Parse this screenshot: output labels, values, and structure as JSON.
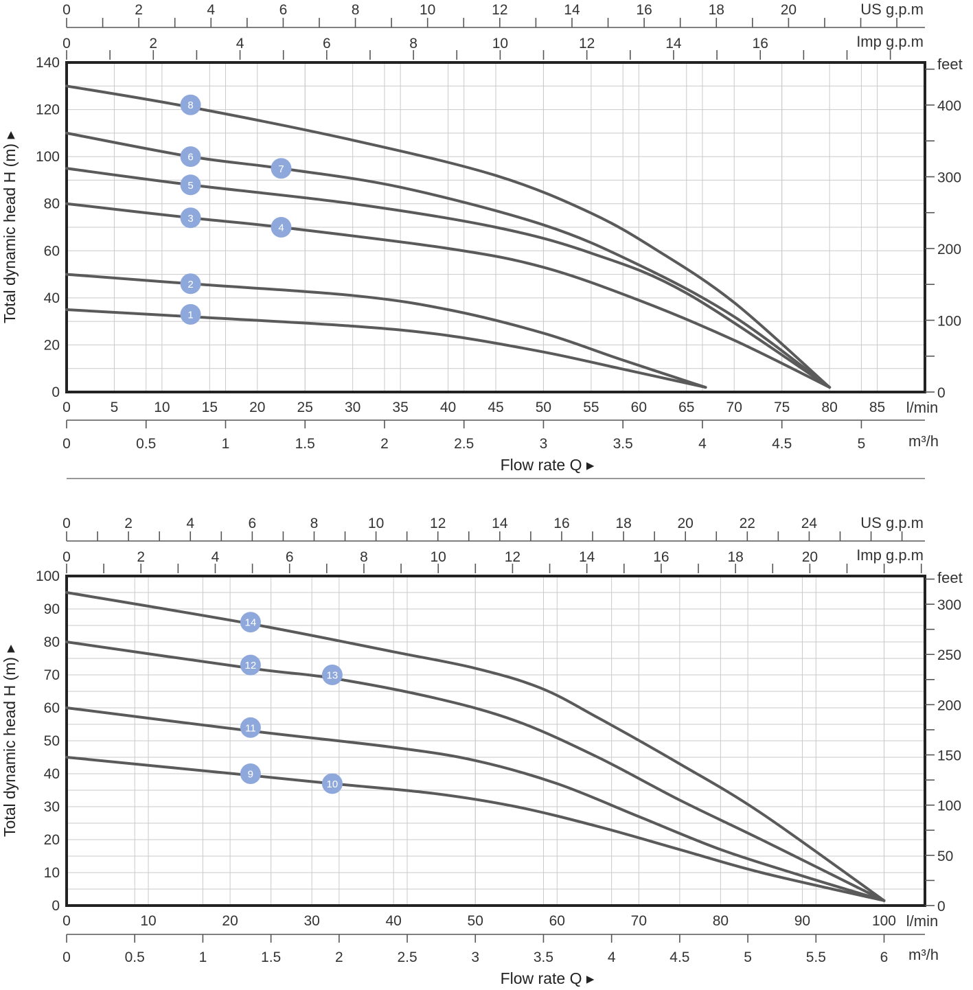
{
  "chart_data": [
    {
      "type": "line",
      "title": "",
      "colors": {
        "curve": "#5a5a5a",
        "badge": "#8fa8dc",
        "grid": "#c9c9c9",
        "frame": "#222222"
      },
      "ylabel": "Total dynamic head H (m) ▸",
      "xlabel": "Flow rate Q ▸",
      "xunit_lmin": "l/min",
      "xunit_m3h": "m³/h",
      "yunit_feet": "feet",
      "gpm_us_unit": "US g.p.m",
      "gpm_imp_unit": "Imp g.p.m",
      "xlim": [
        0,
        90
      ],
      "ylim": [
        0,
        140
      ],
      "x_ticks_lmin": [
        0,
        5,
        10,
        15,
        20,
        25,
        30,
        35,
        40,
        45,
        50,
        55,
        60,
        65,
        70,
        75,
        80,
        85
      ],
      "y_ticks_m": [
        0,
        20,
        40,
        60,
        80,
        100,
        120,
        140
      ],
      "m3h_ticks": [
        0,
        0.5,
        1,
        1.5,
        2,
        2.5,
        3,
        3.5,
        4,
        4.5,
        5
      ],
      "us_gpm_ticks": [
        0,
        2,
        4,
        6,
        8,
        10,
        12,
        14,
        16,
        18,
        20
      ],
      "imp_gpm_ticks": [
        0,
        2,
        4,
        6,
        8,
        10,
        12,
        14,
        16
      ],
      "feet_ticks": [
        0,
        100,
        200,
        300,
        400
      ],
      "series": [
        {
          "name": "8",
          "x": [
            0,
            13,
            30,
            45,
            55,
            62,
            70,
            80
          ],
          "y": [
            130,
            121,
            107,
            92,
            76,
            60,
            38,
            2
          ]
        },
        {
          "name": "6/7",
          "x": [
            0,
            13,
            22.5,
            35,
            50,
            60,
            70,
            80
          ],
          "y": [
            110,
            100,
            95,
            87,
            71,
            54,
            32,
            2
          ]
        },
        {
          "name": "5",
          "x": [
            0,
            13,
            30,
            45,
            55,
            65,
            80
          ],
          "y": [
            95,
            88,
            80,
            70,
            59,
            42,
            2
          ]
        },
        {
          "name": "3/4",
          "x": [
            0,
            13,
            22.5,
            40,
            50,
            60,
            70,
            80
          ],
          "y": [
            80,
            74,
            70,
            61,
            53,
            39,
            22,
            2
          ]
        },
        {
          "name": "2",
          "x": [
            0,
            13,
            30,
            40,
            50,
            58,
            67
          ],
          "y": [
            50,
            46,
            41,
            35,
            25,
            14,
            2
          ]
        },
        {
          "name": "1",
          "x": [
            0,
            13,
            30,
            40,
            50,
            58,
            67
          ],
          "y": [
            35,
            32,
            28,
            24,
            17,
            10,
            2
          ]
        }
      ],
      "badges": [
        {
          "label": "8",
          "x": 13,
          "y": 122
        },
        {
          "label": "6",
          "x": 13,
          "y": 100
        },
        {
          "label": "7",
          "x": 22.5,
          "y": 95
        },
        {
          "label": "5",
          "x": 13,
          "y": 88
        },
        {
          "label": "3",
          "x": 13,
          "y": 74
        },
        {
          "label": "4",
          "x": 22.5,
          "y": 70
        },
        {
          "label": "2",
          "x": 13,
          "y": 46
        },
        {
          "label": "1",
          "x": 13,
          "y": 33
        }
      ]
    },
    {
      "type": "line",
      "title": "",
      "colors": {
        "curve": "#5a5a5a",
        "badge": "#8fa8dc",
        "grid": "#c9c9c9",
        "frame": "#222222"
      },
      "ylabel": "Total dynamic head H (m) ▸",
      "xlabel": "Flow rate Q ▸",
      "xunit_lmin": "l/min",
      "xunit_m3h": "m³/h",
      "yunit_feet": "feet",
      "gpm_us_unit": "US g.p.m",
      "gpm_imp_unit": "Imp g.p.m",
      "xlim": [
        0,
        105
      ],
      "ylim": [
        0,
        100
      ],
      "x_ticks_lmin": [
        0,
        10,
        20,
        30,
        40,
        50,
        60,
        70,
        80,
        90,
        100
      ],
      "y_ticks_m": [
        0,
        10,
        20,
        30,
        40,
        50,
        60,
        70,
        80,
        90,
        100
      ],
      "m3h_ticks": [
        0,
        0.5,
        1,
        1.5,
        2,
        2.5,
        3,
        3.5,
        4,
        4.5,
        5,
        5.5,
        6
      ],
      "us_gpm_ticks": [
        0,
        2,
        4,
        6,
        8,
        10,
        12,
        14,
        16,
        18,
        20,
        22,
        24
      ],
      "imp_gpm_ticks": [
        0,
        2,
        4,
        6,
        8,
        10,
        12,
        14,
        16,
        18,
        20
      ],
      "feet_ticks": [
        0,
        50,
        100,
        150,
        200,
        250,
        300
      ],
      "series": [
        {
          "name": "14",
          "x": [
            0,
            22.5,
            40,
            50,
            58,
            65,
            75,
            85,
            100
          ],
          "y": [
            95,
            85.5,
            77,
            72,
            66,
            57,
            43,
            28,
            1.5
          ]
        },
        {
          "name": "12/13",
          "x": [
            0,
            22.5,
            32.5,
            45,
            55,
            65,
            75,
            85,
            100
          ],
          "y": [
            80,
            72,
            69,
            63,
            56,
            45,
            32,
            20,
            1.5
          ]
        },
        {
          "name": "11",
          "x": [
            0,
            22.5,
            40,
            50,
            60,
            70,
            80,
            90,
            100
          ],
          "y": [
            60,
            53,
            48,
            44,
            37,
            27,
            17,
            9,
            1.5
          ]
        },
        {
          "name": "9/10",
          "x": [
            0,
            22.5,
            32.5,
            45,
            55,
            65,
            75,
            85,
            100
          ],
          "y": [
            45,
            39.5,
            37,
            34,
            30,
            24,
            17,
            10,
            1.5
          ]
        }
      ],
      "badges": [
        {
          "label": "14",
          "x": 22.5,
          "y": 86
        },
        {
          "label": "12",
          "x": 22.5,
          "y": 73
        },
        {
          "label": "13",
          "x": 32.5,
          "y": 70
        },
        {
          "label": "11",
          "x": 22.5,
          "y": 54
        },
        {
          "label": "9",
          "x": 22.5,
          "y": 40
        },
        {
          "label": "10",
          "x": 32.5,
          "y": 37
        }
      ]
    }
  ]
}
